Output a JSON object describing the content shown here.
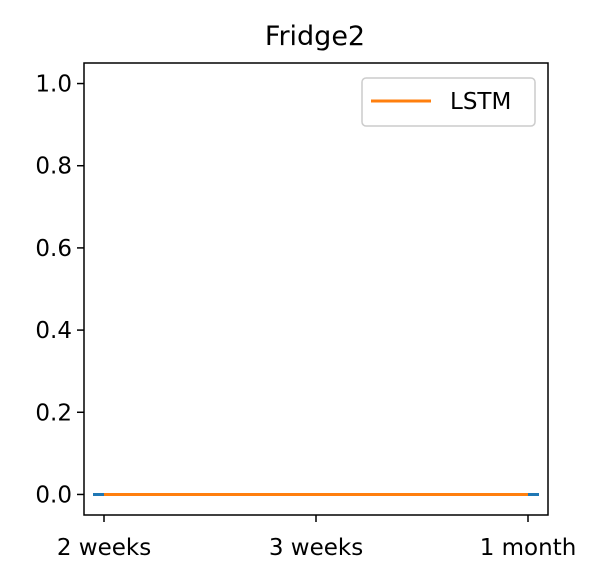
{
  "chart_data": {
    "type": "line",
    "title": "Fridge2",
    "xlabel": "",
    "ylabel": "",
    "categories": [
      "2 weeks",
      "3 weeks",
      "1 month"
    ],
    "ylim": [
      -0.05,
      1.05
    ],
    "yticks": [
      0.0,
      0.2,
      0.4,
      0.6,
      0.8,
      1.0
    ],
    "ytick_labels": [
      "0.0",
      "0.2",
      "0.4",
      "0.6",
      "0.8",
      "1.0"
    ],
    "grid": false,
    "legend_position": "top-right",
    "series": [
      {
        "values": [
          0.0,
          0.0,
          0.0
        ],
        "color": "#1f77b4",
        "style": "dashed"
      },
      {
        "name": "LSTM",
        "values": [
          0.0,
          0.0,
          0.0
        ],
        "color": "#ff7f0e",
        "style": "solid"
      }
    ]
  }
}
